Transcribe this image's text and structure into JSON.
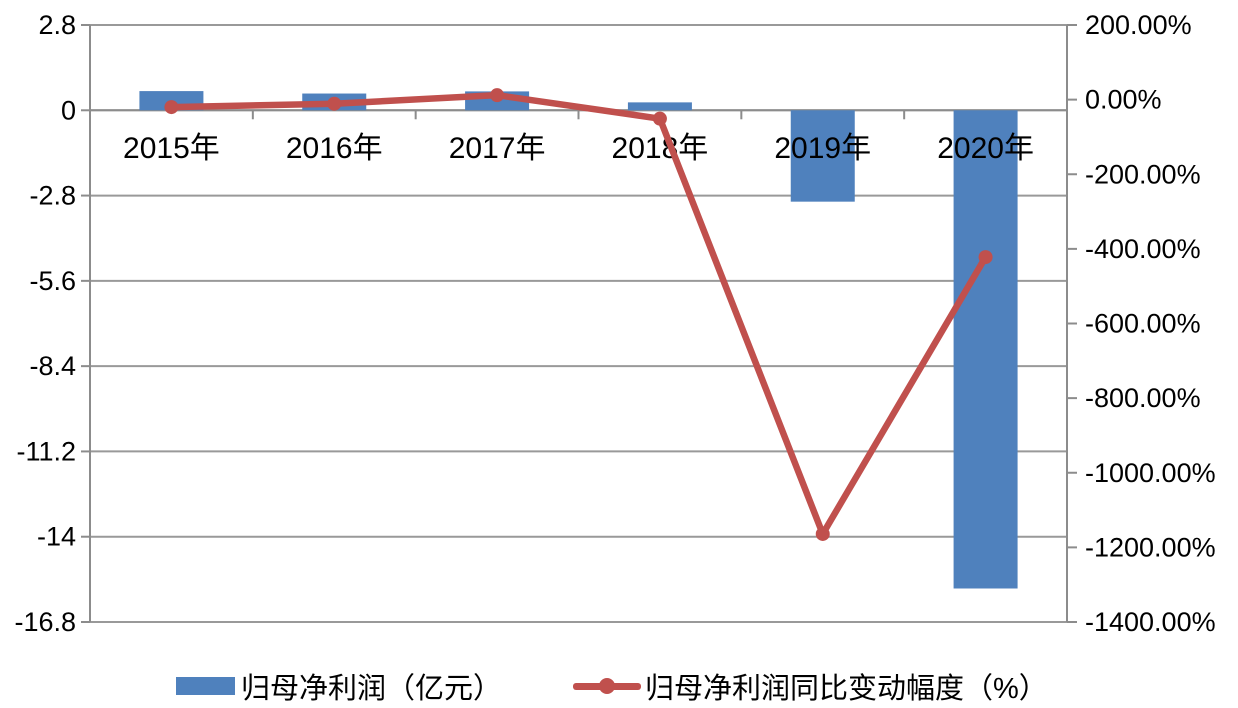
{
  "chart_data": {
    "type": "bar",
    "subtype": "combo-bar-line-dual-axis",
    "categories": [
      "2015年",
      "2016年",
      "2017年",
      "2018年",
      "2019年",
      "2020年"
    ],
    "series": [
      {
        "name": "归母净利润（亿元）",
        "type": "bar",
        "axis": "left",
        "color": "#4F81BD",
        "values": [
          0.63,
          0.55,
          0.62,
          0.26,
          -3.0,
          -15.7
        ]
      },
      {
        "name": "归母净利润同比变动幅度（%）",
        "type": "line",
        "axis": "right",
        "color": "#C0504D",
        "values": [
          -20,
          -11,
          12,
          -51,
          -1164,
          -422
        ]
      }
    ],
    "left_axis": {
      "max": 2.8,
      "min": -16.8,
      "step": 2.8,
      "tick_labels": [
        "2.8",
        "0",
        "-2.8",
        "-5.6",
        "-8.4",
        "-11.2",
        "-14",
        "-16.8"
      ]
    },
    "right_axis": {
      "max": 200,
      "min": -1400,
      "step": 200,
      "tick_labels": [
        "200.00%",
        "0.00%",
        "-200.00%",
        "-400.00%",
        "-600.00%",
        "-800.00%",
        "-1000.00%",
        "-1200.00%",
        "-1400.00%"
      ]
    },
    "grid": true,
    "legend_position": "bottom",
    "title": "",
    "colors": {
      "bar": "#4F81BD",
      "line": "#C0504D",
      "gridline": "#999999",
      "axis": "#8C8C8C",
      "text": "#000000",
      "background": "#FFFFFF"
    }
  }
}
